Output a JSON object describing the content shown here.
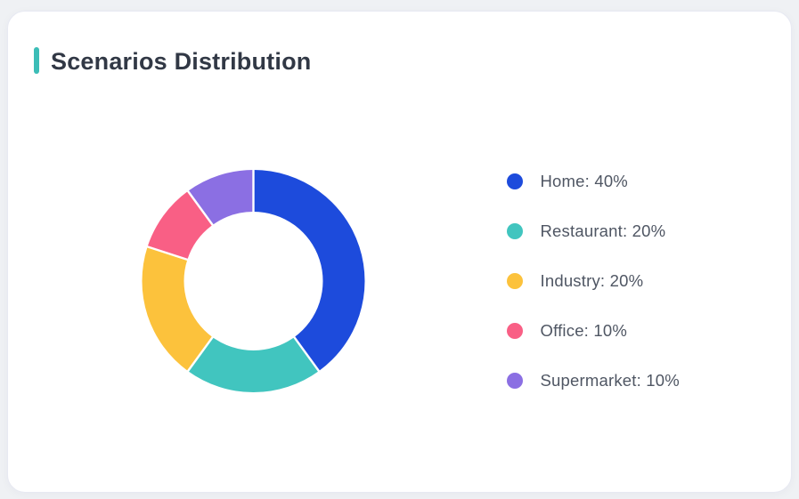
{
  "page": {
    "background_color": "#eff1f4"
  },
  "card": {
    "title": "Scenarios Distribution",
    "accent_color": "#3cbdb7",
    "background_color": "#ffffff"
  },
  "chart_data": {
    "type": "pie",
    "subtype": "donut",
    "title": "Scenarios Distribution",
    "categories": [
      "Home",
      "Restaurant",
      "Industry",
      "Office",
      "Supermarket"
    ],
    "values": [
      40,
      20,
      20,
      10,
      10
    ],
    "unit": "%",
    "colors": [
      "#1d4bdc",
      "#41c5bf",
      "#fcc23c",
      "#f95f85",
      "#8b6fe3"
    ],
    "start_angle_deg": 0,
    "direction": "clockwise",
    "outer_radius_px": 125,
    "inner_radius_px": 78,
    "slice_gap_color": "#ffffff",
    "legend_position": "right"
  },
  "legend": {
    "items": [
      {
        "name": "Home",
        "value": 40,
        "label": "Home: 40%",
        "color": "#1d4bdc"
      },
      {
        "name": "Restaurant",
        "value": 20,
        "label": "Restaurant: 20%",
        "color": "#41c5bf"
      },
      {
        "name": "Industry",
        "value": 20,
        "label": "Industry: 20%",
        "color": "#fcc23c"
      },
      {
        "name": "Office",
        "value": 10,
        "label": "Office: 10%",
        "color": "#f95f85"
      },
      {
        "name": "Supermarket",
        "value": 10,
        "label": "Supermarket: 10%",
        "color": "#8b6fe3"
      }
    ]
  }
}
